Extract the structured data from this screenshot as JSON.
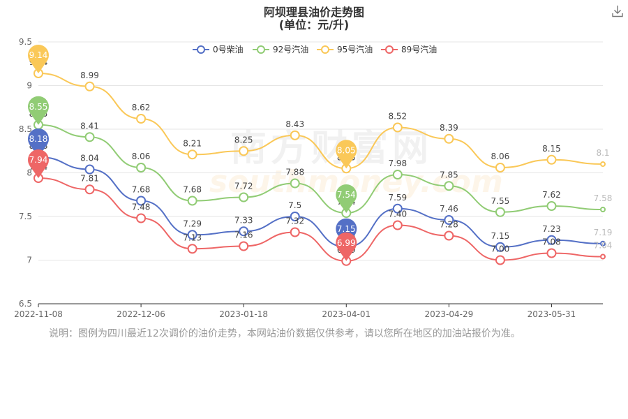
{
  "header": {
    "title": "阿坝理县油价走势图",
    "subtitle": "(单位：元/升)"
  },
  "note": "说明：图例为四川最近12次调价的油价走势，本网站油价数据仅供参考，请以您所在地区的加油站报价为准。",
  "watermark": {
    "cn": "南方财富网",
    "en": "southmoney.com"
  },
  "chart_data": {
    "type": "line",
    "smooth": true,
    "legend_position": "top",
    "x_ticks": [
      "2022-11-08",
      "2022-12-06",
      "2023-01-18",
      "2023-04-01",
      "2023-04-29",
      "2023-05-31"
    ],
    "y_ticks": [
      "6.5",
      "7",
      "7.5",
      "8",
      "8.5",
      "9",
      "9.5"
    ],
    "ylim": [
      6.5,
      9.5
    ],
    "series": [
      {
        "name": "0号柴油",
        "color": "#5470c6",
        "values": [
          8.18,
          8.04,
          7.68,
          7.29,
          7.33,
          7.5,
          7.15,
          7.59,
          7.46,
          7.15,
          7.23,
          7.19
        ],
        "labels": [
          "8.18",
          "8.04",
          "7.68",
          "7.29",
          "7.33",
          "7.5",
          "7.15",
          "7.59",
          "7.46",
          "7.15",
          "7.23",
          "7.19"
        ],
        "max_marker": "8.18",
        "min_marker": "7.15"
      },
      {
        "name": "92号汽油",
        "color": "#91cc75",
        "values": [
          8.55,
          8.41,
          8.06,
          7.68,
          7.72,
          7.88,
          7.54,
          7.98,
          7.85,
          7.55,
          7.62,
          7.58
        ],
        "labels": [
          "8.55",
          "8.41",
          "8.06",
          "7.68",
          "7.72",
          "7.88",
          "7.54",
          "7.98",
          "7.85",
          "7.55",
          "7.62",
          "7.58"
        ],
        "max_marker": "8.55",
        "min_marker": "7.54"
      },
      {
        "name": "95号汽油",
        "color": "#fac858",
        "values": [
          9.14,
          8.99,
          8.62,
          8.21,
          8.25,
          8.43,
          8.05,
          8.52,
          8.39,
          8.06,
          8.15,
          8.1
        ],
        "labels": [
          "9.14",
          "8.99",
          "8.62",
          "8.21",
          "8.25",
          "8.43",
          "8.05",
          "8.52",
          "8.39",
          "8.06",
          "8.15",
          "8.1"
        ],
        "max_marker": "9.14",
        "min_marker": "8.05"
      },
      {
        "name": "89号汽油",
        "color": "#ee6666",
        "values": [
          7.94,
          7.81,
          7.48,
          7.13,
          7.16,
          7.32,
          6.99,
          7.4,
          7.28,
          7.0,
          7.08,
          7.04
        ],
        "labels": [
          "7.94",
          "7.81",
          "7.48",
          "7.13",
          "7.16",
          "7.32",
          "6.99",
          "7.40",
          "7.28",
          "7.00",
          "7.08",
          "7.04"
        ],
        "max_marker": "7.94",
        "min_marker": "6.99"
      }
    ]
  }
}
